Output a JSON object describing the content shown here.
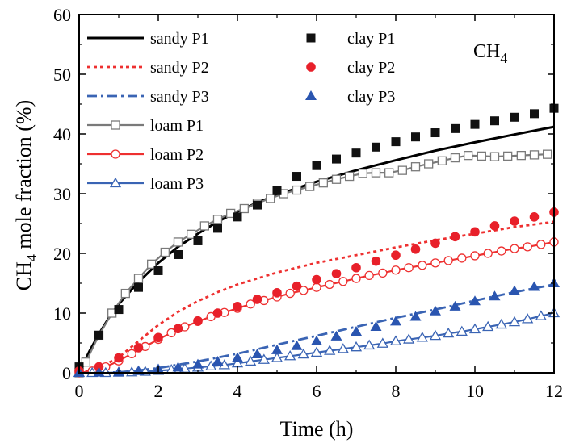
{
  "chart_data": {
    "type": "line",
    "xlabel": "Time (h)",
    "ylabel": "CH4 mole fraction (%)",
    "ylabel_main": "CH",
    "ylabel_sub": "4",
    "ylabel_rest": " mole fraction (%)",
    "species_main": "CH",
    "species_sub": "4",
    "xlim": [
      0,
      12
    ],
    "ylim": [
      0,
      60
    ],
    "xticks": [
      0,
      2,
      4,
      6,
      8,
      10,
      12
    ],
    "yticks": [
      0,
      10,
      20,
      30,
      40,
      50,
      60
    ],
    "legend": "top-left",
    "series": [
      {
        "name": "sandy P1",
        "style": "solid-line",
        "color": "#000000",
        "x": [
          0,
          0.25,
          0.5,
          0.75,
          1,
          1.5,
          2,
          2.5,
          3,
          3.5,
          4,
          4.5,
          5,
          5.5,
          6,
          7,
          8,
          9,
          10,
          11,
          12
        ],
        "y": [
          0,
          3.5,
          6.5,
          9.2,
          11.5,
          15.2,
          18.4,
          21.1,
          23.3,
          25.3,
          27,
          28.5,
          29.8,
          30.9,
          32,
          33.9,
          35.6,
          37.2,
          38.6,
          39.9,
          41.2
        ]
      },
      {
        "name": "sandy P2",
        "style": "dotted-line",
        "color": "#ee3030",
        "x": [
          0,
          0.5,
          1,
          1.5,
          2,
          2.5,
          3,
          3.5,
          4,
          5,
          6,
          7,
          8,
          9,
          10,
          11,
          12
        ],
        "y": [
          0,
          0.8,
          2.6,
          5.3,
          8,
          10.2,
          12,
          13.5,
          14.8,
          16.8,
          18.4,
          19.7,
          21,
          22.2,
          23.3,
          24.4,
          25.3
        ]
      },
      {
        "name": "sandy P3",
        "style": "dashdot-line",
        "color": "#3a64b4",
        "x": [
          0,
          1,
          1.5,
          2,
          3,
          4,
          5,
          6,
          7,
          8,
          9,
          10,
          11,
          12
        ],
        "y": [
          0,
          0.1,
          0.4,
          0.8,
          1.9,
          3.2,
          4.7,
          6.2,
          7.7,
          9.2,
          10.6,
          12.1,
          13.5,
          14.8
        ]
      },
      {
        "name": "loam P1",
        "style": "line-open-square",
        "color": "#7a7a7a",
        "x": [
          0,
          0.17,
          0.5,
          0.83,
          1.17,
          1.5,
          1.83,
          2.17,
          2.5,
          2.83,
          3.17,
          3.5,
          3.83,
          4.17,
          4.5,
          4.83,
          5.17,
          5.5,
          5.83,
          6.17,
          6.5,
          6.83,
          7.17,
          7.5,
          7.83,
          8.17,
          8.5,
          8.83,
          9.17,
          9.5,
          9.83,
          10.17,
          10.5,
          10.83,
          11.17,
          11.5,
          11.83
        ],
        "y": [
          0,
          1.8,
          6.3,
          10,
          13.3,
          15.8,
          18.2,
          20.2,
          21.9,
          23.2,
          24.6,
          25.7,
          26.7,
          27.5,
          28.4,
          29.2,
          30,
          30.6,
          31.2,
          31.8,
          32.4,
          32.9,
          33.4,
          33.5,
          33.5,
          33.9,
          34.5,
          35,
          35.5,
          36,
          36.4,
          36.3,
          36.2,
          36.3,
          36.4,
          36.5,
          36.6
        ]
      },
      {
        "name": "loam P2",
        "style": "line-open-circle",
        "color": "#ee3030",
        "x": [
          0,
          0.33,
          0.67,
          1,
          1.33,
          1.67,
          2,
          2.33,
          2.67,
          3,
          3.33,
          3.67,
          4,
          4.33,
          4.67,
          5,
          5.33,
          5.67,
          6,
          6.33,
          6.67,
          7,
          7.33,
          7.67,
          8,
          8.33,
          8.67,
          9,
          9.33,
          9.67,
          10,
          10.33,
          10.67,
          11,
          11.33,
          11.67,
          12
        ],
        "y": [
          0,
          0.3,
          1,
          2,
          3.2,
          4.4,
          5.6,
          6.7,
          7.7,
          8.6,
          9.4,
          10.1,
          10.8,
          11.5,
          12.1,
          12.7,
          13.3,
          13.8,
          14.3,
          14.8,
          15.3,
          15.8,
          16.3,
          16.7,
          17.2,
          17.6,
          18,
          18.4,
          18.8,
          19.2,
          19.6,
          20,
          20.4,
          20.8,
          21.1,
          21.5,
          21.9
        ]
      },
      {
        "name": "loam P3",
        "style": "line-open-triangle",
        "color": "#3a64b4",
        "x": [
          0,
          0.33,
          0.67,
          1,
          1.33,
          1.67,
          2,
          2.33,
          2.67,
          3,
          3.33,
          3.67,
          4,
          4.33,
          4.67,
          5,
          5.33,
          5.67,
          6,
          6.33,
          6.67,
          7,
          7.33,
          7.67,
          8,
          8.33,
          8.67,
          9,
          9.33,
          9.67,
          10,
          10.33,
          10.67,
          11,
          11.33,
          11.67,
          12
        ],
        "y": [
          0,
          0,
          0,
          0.05,
          0.1,
          0.2,
          0.35,
          0.5,
          0.7,
          0.9,
          1.1,
          1.3,
          1.6,
          1.9,
          2.2,
          2.5,
          2.8,
          3.1,
          3.4,
          3.7,
          4,
          4.3,
          4.6,
          4.9,
          5.3,
          5.6,
          5.9,
          6.2,
          6.6,
          6.9,
          7.3,
          7.7,
          8.1,
          8.5,
          9,
          9.5,
          10
        ]
      },
      {
        "name": "clay P1",
        "style": "filled-square",
        "color": "#111111",
        "x": [
          0,
          0.5,
          1,
          1.5,
          2,
          2.5,
          3,
          3.5,
          4,
          4.5,
          5,
          5.5,
          6,
          6.5,
          7,
          7.5,
          8,
          8.5,
          9,
          9.5,
          10,
          10.5,
          11,
          11.5,
          12
        ],
        "y": [
          1,
          6.3,
          10.6,
          14.3,
          17.1,
          19.8,
          22.1,
          24.2,
          26.1,
          28.1,
          30.5,
          32.9,
          34.7,
          35.8,
          36.8,
          37.8,
          38.7,
          39.5,
          40.2,
          40.9,
          41.6,
          42.2,
          42.8,
          43.4,
          44.3
        ]
      },
      {
        "name": "clay P2",
        "style": "filled-circle",
        "color": "#e8202a",
        "x": [
          0,
          0.5,
          1,
          1.5,
          2,
          2.5,
          3,
          3.5,
          4,
          4.5,
          5,
          5.5,
          6,
          6.5,
          7,
          7.5,
          8,
          8.5,
          9,
          9.5,
          10,
          10.5,
          11,
          11.5,
          12
        ],
        "y": [
          0.3,
          1,
          2.5,
          4.2,
          5.9,
          7.4,
          8.7,
          10,
          11.1,
          12.3,
          13.4,
          14.5,
          15.6,
          16.6,
          17.6,
          18.7,
          19.7,
          20.7,
          21.7,
          22.8,
          23.6,
          24.6,
          25.4,
          26.1,
          26.9
        ]
      },
      {
        "name": "clay P3",
        "style": "filled-triangle",
        "color": "#2a55b0",
        "x": [
          0,
          0.5,
          1,
          1.5,
          2,
          2.5,
          3,
          3.5,
          4,
          4.5,
          5,
          5.5,
          6,
          6.5,
          7,
          7.5,
          8,
          8.5,
          9,
          9.5,
          10,
          10.5,
          11,
          11.5,
          12
        ],
        "y": [
          0,
          0.05,
          0.1,
          0.3,
          0.6,
          0.9,
          1.4,
          1.9,
          2.5,
          3.1,
          3.8,
          4.5,
          5.3,
          6.1,
          6.9,
          7.7,
          8.6,
          9.4,
          10.3,
          11.1,
          12,
          12.8,
          13.7,
          14.4,
          15
        ]
      }
    ]
  }
}
